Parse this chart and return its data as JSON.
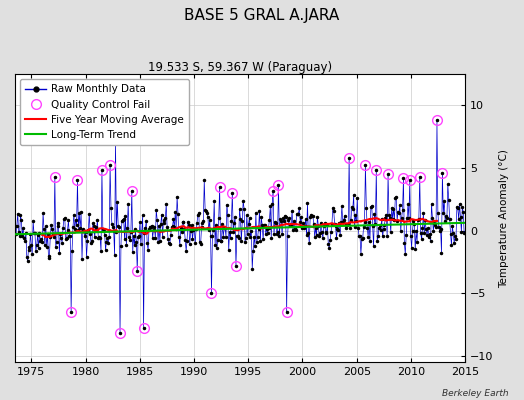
{
  "title": "BASE 5 GRAL A.JARA",
  "subtitle": "19.533 S, 59.367 W (Paraguay)",
  "ylabel": "Temperature Anomaly (°C)",
  "credit": "Berkeley Earth",
  "xlim": [
    1973.5,
    2015.0
  ],
  "ylim": [
    -10.5,
    12.5
  ],
  "yticks": [
    -10,
    -5,
    0,
    5,
    10
  ],
  "xticks": [
    1975,
    1980,
    1985,
    1990,
    1995,
    2000,
    2005,
    2010,
    2015
  ],
  "bg_color": "#e0e0e0",
  "plot_bg_color": "#ffffff",
  "raw_line_color": "#0000cc",
  "raw_dot_color": "#000000",
  "qc_fail_color": "#ff44ff",
  "moving_avg_color": "#ff0000",
  "trend_color": "#00bb00",
  "title_fontsize": 11,
  "subtitle_fontsize": 8.5,
  "tick_fontsize": 8,
  "legend_fontsize": 7.5,
  "ylabel_fontsize": 7.5,
  "seed": 42
}
